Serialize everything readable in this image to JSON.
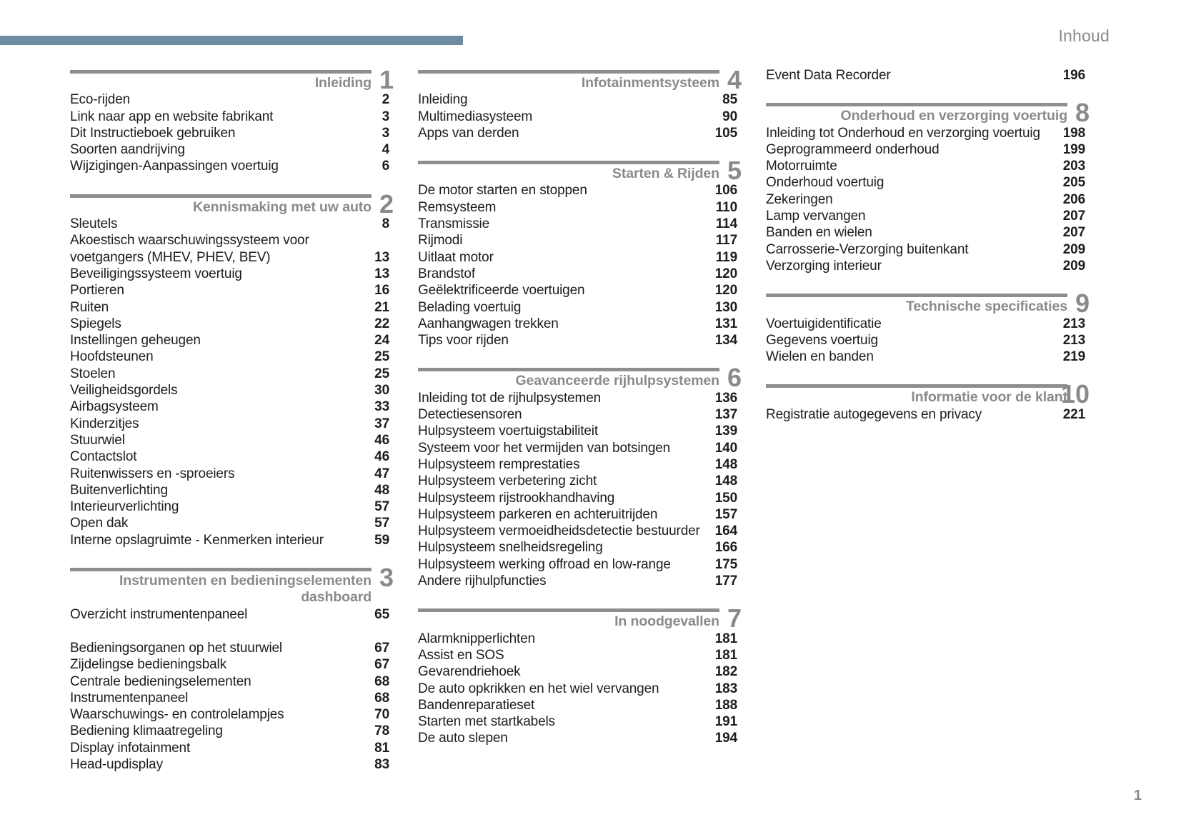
{
  "page": {
    "top_right_label": "Inhoud",
    "page_number": "1"
  },
  "colors": {
    "accent_bar": "#6D8CA1",
    "rule": "#8E8E8E",
    "heading": "#8A8A8A",
    "text": "#1D1D1B"
  },
  "columns": [
    {
      "sections": [
        {
          "number": "1",
          "title_lines": [
            "Inleiding"
          ],
          "items": [
            {
              "label": "Eco-rijden",
              "page": "2"
            },
            {
              "label": "Link naar app en website fabrikant",
              "page": "3"
            },
            {
              "label": "Dit Instructieboek gebruiken",
              "page": "3"
            },
            {
              "label": "Soorten aandrijving",
              "page": "4"
            },
            {
              "label": "Wijzigingen-Aanpassingen voertuig",
              "page": "6"
            }
          ]
        },
        {
          "number": "2",
          "title_lines": [
            "Kennismaking met uw auto"
          ],
          "items": [
            {
              "label": "Sleutels",
              "page": "8"
            },
            {
              "label": "Akoestisch waarschuwingssysteem voor voetgangers (MHEV, PHEV, BEV)",
              "page": "13"
            },
            {
              "label": "Beveiligingssysteem voertuig",
              "page": "13"
            },
            {
              "label": "Portieren",
              "page": "16"
            },
            {
              "label": "Ruiten",
              "page": "21"
            },
            {
              "label": "Spiegels",
              "page": "22"
            },
            {
              "label": "Instellingen geheugen",
              "page": "24"
            },
            {
              "label": "Hoofdsteunen",
              "page": "25"
            },
            {
              "label": "Stoelen",
              "page": "25"
            },
            {
              "label": "Veiligheidsgordels",
              "page": "30"
            },
            {
              "label": "Airbagsysteem",
              "page": "33"
            },
            {
              "label": "Kinderzitjes",
              "page": "37"
            },
            {
              "label": "Stuurwiel",
              "page": "46"
            },
            {
              "label": "Contactslot",
              "page": "46"
            },
            {
              "label": "Ruitenwissers en -sproeiers",
              "page": "47"
            },
            {
              "label": "Buitenverlichting",
              "page": "48"
            },
            {
              "label": "Interieurverlichting",
              "page": "57"
            },
            {
              "label": "Open dak",
              "page": "57"
            },
            {
              "label": "Interne opslagruimte - Kenmerken interieur",
              "page": "59"
            }
          ]
        },
        {
          "number": "3",
          "title_lines": [
            "Instrumenten en bedieningselementen",
            "dashboard"
          ],
          "items": [
            {
              "label": "Overzicht instrumentenpaneel",
              "page": "65"
            },
            {
              "label": "Bedieningsorganen op het stuurwiel",
              "page": "67",
              "gap_before": true
            },
            {
              "label": "Zijdelingse bedieningsbalk",
              "page": "67"
            },
            {
              "label": "Centrale bedieningselementen",
              "page": "68"
            },
            {
              "label": "Instrumentenpaneel",
              "page": "68"
            },
            {
              "label": "Waarschuwings- en controlelampjes",
              "page": "70"
            },
            {
              "label": "Bediening klimaatregeling",
              "page": "78"
            },
            {
              "label": "Display infotainment",
              "page": "81"
            },
            {
              "label": "Head-updisplay",
              "page": "83"
            }
          ]
        }
      ]
    },
    {
      "sections": [
        {
          "number": "4",
          "title_lines": [
            "Infotainmentsysteem"
          ],
          "items": [
            {
              "label": "Inleiding",
              "page": "85"
            },
            {
              "label": "Multimediasysteem",
              "page": "90"
            },
            {
              "label": "Apps van derden",
              "page": "105"
            }
          ]
        },
        {
          "number": "5",
          "title_lines": [
            "Starten & Rijden"
          ],
          "items": [
            {
              "label": "De motor starten en stoppen",
              "page": "106"
            },
            {
              "label": "Remsysteem",
              "page": "110"
            },
            {
              "label": "Transmissie",
              "page": "114"
            },
            {
              "label": "Rijmodi",
              "page": "117"
            },
            {
              "label": "Uitlaat motor",
              "page": "119"
            },
            {
              "label": "Brandstof",
              "page": "120"
            },
            {
              "label": "Geëlektrificeerde voertuigen",
              "page": "120"
            },
            {
              "label": "Belading voertuig",
              "page": "130"
            },
            {
              "label": "Aanhangwagen trekken",
              "page": "131"
            },
            {
              "label": "Tips voor rijden",
              "page": "134"
            }
          ]
        },
        {
          "number": "6",
          "title_lines": [
            "Geavanceerde rijhulpsystemen"
          ],
          "items": [
            {
              "label": "Inleiding tot de rijhulpsystemen",
              "page": "136"
            },
            {
              "label": "Detectiesensoren",
              "page": "137"
            },
            {
              "label": "Hulpsysteem voertuigstabiliteit",
              "page": "139"
            },
            {
              "label": "Systeem voor het vermijden van botsingen",
              "page": "140"
            },
            {
              "label": "Hulpsysteem remprestaties",
              "page": "148"
            },
            {
              "label": "Hulpsysteem verbetering zicht",
              "page": "148"
            },
            {
              "label": "Hulpsysteem rijstrookhandhaving",
              "page": "150"
            },
            {
              "label": "Hulpsysteem parkeren en achteruitrijden",
              "page": "157"
            },
            {
              "label": "Hulpsysteem vermoeidheidsdetectie bestuurder",
              "page": "164"
            },
            {
              "label": "Hulpsysteem snelheidsregeling",
              "page": "166"
            },
            {
              "label": "Hulpsysteem werking offroad en low-range",
              "page": "175"
            },
            {
              "label": "Andere rijhulpfuncties",
              "page": "177"
            }
          ]
        },
        {
          "number": "7",
          "title_lines": [
            "In noodgevallen"
          ],
          "items": [
            {
              "label": "Alarmknipperlichten",
              "page": "181"
            },
            {
              "label": "Assist en SOS",
              "page": "181"
            },
            {
              "label": "Gevarendriehoek",
              "page": "182"
            },
            {
              "label": "De auto opkrikken en het wiel vervangen",
              "page": "183"
            },
            {
              "label": "Bandenreparatieset",
              "page": "188"
            },
            {
              "label": "Starten met startkabels",
              "page": "191"
            },
            {
              "label": "De auto slepen",
              "page": "194"
            }
          ]
        }
      ]
    },
    {
      "sections": [
        {
          "headerless": true,
          "items": [
            {
              "label": "Event Data Recorder",
              "page": "196"
            }
          ]
        },
        {
          "number": "8",
          "title_lines": [
            "Onderhoud en verzorging voertuig"
          ],
          "items": [
            {
              "label": "Inleiding tot Onderhoud en verzorging voertuig",
              "page": "198"
            },
            {
              "label": "Geprogrammeerd onderhoud",
              "page": "199"
            },
            {
              "label": "Motorruimte",
              "page": "203"
            },
            {
              "label": "Onderhoud voertuig",
              "page": "205"
            },
            {
              "label": "Zekeringen",
              "page": "206"
            },
            {
              "label": "Lamp vervangen",
              "page": "207"
            },
            {
              "label": "Banden en wielen",
              "page": "207"
            },
            {
              "label": "Carrosserie-Verzorging buitenkant",
              "page": "209"
            },
            {
              "label": "Verzorging interieur",
              "page": "209"
            }
          ]
        },
        {
          "number": "9",
          "title_lines": [
            "Technische specificaties"
          ],
          "items": [
            {
              "label": "Voertuigidentificatie",
              "page": "213"
            },
            {
              "label": "Gegevens voertuig",
              "page": "213"
            },
            {
              "label": "Wielen en banden",
              "page": "219"
            }
          ]
        },
        {
          "number": "10",
          "title_lines": [
            "Informatie voor de klant"
          ],
          "items": [
            {
              "label": "Registratie autogegevens en privacy",
              "page": "221"
            }
          ]
        }
      ]
    }
  ]
}
